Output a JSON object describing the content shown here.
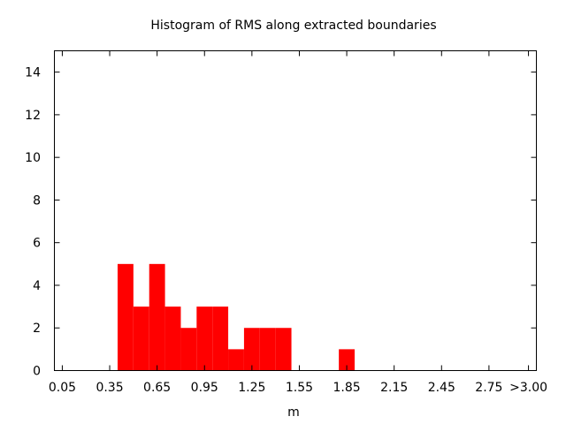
{
  "chart_data": {
    "type": "bar",
    "title": "Histogram of RMS along extracted boundaries",
    "xlabel": "m",
    "ylabel": "",
    "bar_color": "#ff0000",
    "bin_width": 0.1,
    "xlim": [
      0.0,
      3.05
    ],
    "ylim": [
      0,
      15
    ],
    "x_ticks": [
      {
        "value": 0.05,
        "label": "0.05"
      },
      {
        "value": 0.35,
        "label": "0.35"
      },
      {
        "value": 0.65,
        "label": "0.65"
      },
      {
        "value": 0.95,
        "label": "0.95"
      },
      {
        "value": 1.25,
        "label": "1.25"
      },
      {
        "value": 1.55,
        "label": "1.55"
      },
      {
        "value": 1.85,
        "label": "1.85"
      },
      {
        "value": 2.15,
        "label": "2.15"
      },
      {
        "value": 2.45,
        "label": "2.45"
      },
      {
        "value": 2.75,
        "label": "2.75"
      },
      {
        "value": 3.0,
        "label": ">3.00"
      }
    ],
    "y_ticks": [
      0,
      2,
      4,
      6,
      8,
      10,
      12,
      14
    ],
    "bins": [
      0.45,
      0.55,
      0.65,
      0.75,
      0.85,
      0.95,
      1.05,
      1.15,
      1.25,
      1.35,
      1.45,
      1.55,
      1.65,
      1.75,
      1.85
    ],
    "values": [
      5,
      3,
      5,
      3,
      2,
      3,
      3,
      1,
      2,
      2,
      2,
      0,
      0,
      0,
      1
    ]
  }
}
